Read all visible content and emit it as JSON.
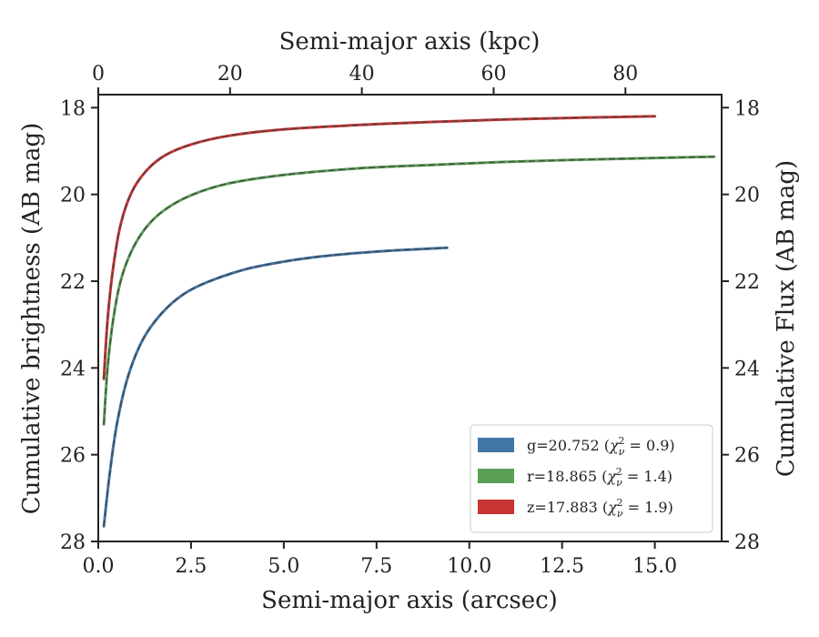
{
  "chart_data": {
    "type": "line",
    "title": "",
    "xlabel": "Semi-major axis (arcsec)",
    "ylabel": "Cumulative brightness (AB mag)",
    "top_xlabel": "Semi-major axis (kpc)",
    "right_ylabel": "Cumulative Flux (AB mag)",
    "xlim": [
      0,
      16.8
    ],
    "ylim": [
      28,
      17.7
    ],
    "y_inverted": true,
    "top_xlim": [
      0,
      94.6
    ],
    "x_ticks": [
      "0.0",
      "2.5",
      "5.0",
      "7.5",
      "10.0",
      "12.5",
      "15.0"
    ],
    "y_ticks": [
      "18",
      "20",
      "22",
      "24",
      "26",
      "28"
    ],
    "top_x_ticks": [
      "0",
      "20",
      "40",
      "60",
      "80"
    ],
    "right_y_ticks": [
      "18",
      "20",
      "22",
      "24",
      "26",
      "28"
    ],
    "grid": false,
    "legend_position": "lower-right",
    "series": [
      {
        "name": "g=20.752 (χ²ν = 0.9)",
        "label_main": "g=20.752 (",
        "label_sub": "ν",
        "label_sup": "2",
        "label_end": " = 0.9)",
        "color": "#4176a6",
        "x": [
          0.15,
          0.3,
          0.5,
          0.8,
          1.2,
          1.7,
          2.3,
          3.0,
          4.0,
          5.0,
          6.0,
          7.0,
          8.0,
          9.4
        ],
        "y": [
          27.65,
          26.5,
          25.3,
          24.2,
          23.35,
          22.75,
          22.3,
          22.0,
          21.72,
          21.55,
          21.43,
          21.35,
          21.29,
          21.23
        ]
      },
      {
        "name": "r=18.865 (χ²ν = 1.4)",
        "label_main": "r=18.865 (",
        "label_sub": "ν",
        "label_sup": "2",
        "label_end": " = 1.4)",
        "color": "#5a9f55",
        "x": [
          0.15,
          0.25,
          0.4,
          0.6,
          0.9,
          1.3,
          1.8,
          2.5,
          3.5,
          5.0,
          7.0,
          9.0,
          11.0,
          13.0,
          15.0,
          16.6
        ],
        "y": [
          25.3,
          24.0,
          22.9,
          22.0,
          21.3,
          20.75,
          20.35,
          20.02,
          19.75,
          19.55,
          19.4,
          19.32,
          19.25,
          19.2,
          19.16,
          19.13
        ]
      },
      {
        "name": "z=17.883 (χ²ν = 1.9)",
        "label_main": "z=17.883 (",
        "label_sub": "ν",
        "label_sup": "2",
        "label_end": " = 1.9)",
        "color": "#c93434",
        "x": [
          0.15,
          0.25,
          0.4,
          0.6,
          0.9,
          1.3,
          1.8,
          2.5,
          3.5,
          5.0,
          7.0,
          9.0,
          11.0,
          13.0,
          15.0
        ],
        "y": [
          24.25,
          22.9,
          21.7,
          20.7,
          19.95,
          19.45,
          19.1,
          18.85,
          18.65,
          18.5,
          18.4,
          18.33,
          18.27,
          18.23,
          18.2
        ]
      }
    ]
  }
}
